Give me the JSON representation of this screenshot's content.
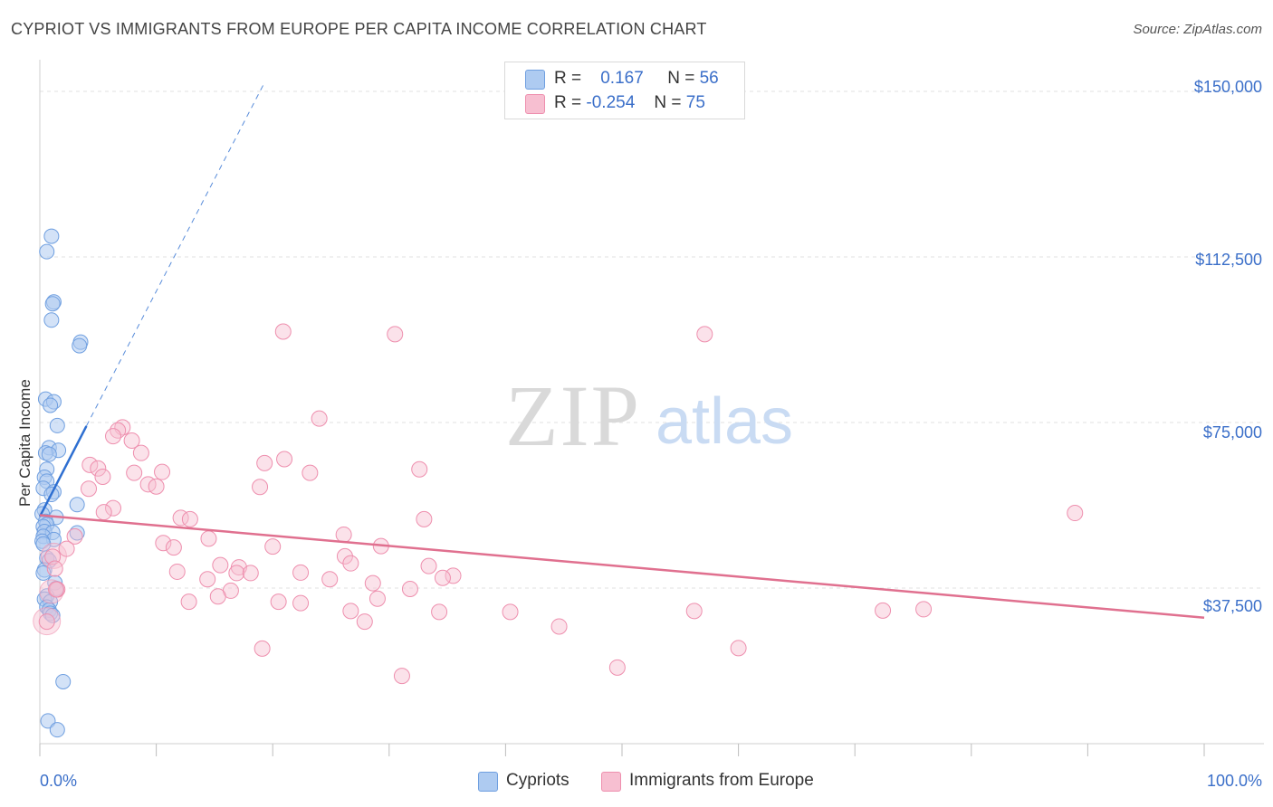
{
  "header": {
    "title": "CYPRIOT VS IMMIGRANTS FROM EUROPE PER CAPITA INCOME CORRELATION CHART",
    "source": "Source: ZipAtlas.com"
  },
  "legend": {
    "rows": [
      {
        "r_label": "R =",
        "r_value": "0.167",
        "n_label": "N =",
        "n_value": "56"
      },
      {
        "r_label": "R =",
        "r_value": "-0.254",
        "n_label": "N =",
        "n_value": "75"
      }
    ],
    "bottom": [
      "Cypriots",
      "Immigrants from Europe"
    ]
  },
  "watermark": {
    "zip": "ZIP",
    "atlas": "atlas"
  },
  "colors": {
    "blue_fill": "#aecbf1",
    "blue_stroke": "#6f9fe0",
    "blue_line": "#2e6fd1",
    "pink_fill": "#f7bfd1",
    "pink_stroke": "#ee8fae",
    "pink_line": "#e0708f",
    "tick_text": "#3b6fc9"
  },
  "chart_data": {
    "type": "scatter",
    "title": "CYPRIOT VS IMMIGRANTS FROM EUROPE PER CAPITA INCOME CORRELATION CHART",
    "xlabel": "",
    "ylabel": "Per Capita Income",
    "xlim": [
      0,
      100
    ],
    "ylim": [
      0,
      155000
    ],
    "x_tick_labels": [
      "0.0%",
      "100.0%"
    ],
    "y_ticks": [
      37500,
      75000,
      112500,
      150000
    ],
    "y_tick_labels": [
      "$37,500",
      "$75,000",
      "$112,500",
      "$150,000"
    ],
    "grid": true,
    "legend_position": "top-center",
    "series": [
      {
        "name": "Cypriots",
        "color": "#6f9fe0",
        "r": 0.167,
        "n": 56,
        "trend": {
          "x": [
            0,
            4
          ],
          "y": [
            53700,
            74200
          ]
        },
        "trend_extension": {
          "x": [
            4,
            19.2
          ],
          "y": [
            74200,
            151500
          ]
        },
        "points": [
          [
            1.0,
            117200
          ],
          [
            0.6,
            113700
          ],
          [
            1.2,
            102300
          ],
          [
            1.1,
            101900
          ],
          [
            1.0,
            98200
          ],
          [
            3.5,
            93200
          ],
          [
            3.4,
            92400
          ],
          [
            0.5,
            80300
          ],
          [
            1.2,
            79700
          ],
          [
            0.9,
            78900
          ],
          [
            1.5,
            74300
          ],
          [
            0.8,
            69300
          ],
          [
            1.6,
            68700
          ],
          [
            0.5,
            68100
          ],
          [
            0.8,
            67800
          ],
          [
            0.6,
            64400
          ],
          [
            0.4,
            62600
          ],
          [
            0.6,
            61700
          ],
          [
            0.3,
            60100
          ],
          [
            1.2,
            59300
          ],
          [
            1.0,
            58700
          ],
          [
            3.2,
            56400
          ],
          [
            0.4,
            55200
          ],
          [
            0.2,
            54300
          ],
          [
            1.4,
            53500
          ],
          [
            0.5,
            52600
          ],
          [
            0.6,
            51900
          ],
          [
            0.3,
            51400
          ],
          [
            0.4,
            50300
          ],
          [
            1.1,
            50100
          ],
          [
            3.2,
            50000
          ],
          [
            0.3,
            49200
          ],
          [
            1.2,
            48500
          ],
          [
            0.2,
            48100
          ],
          [
            0.3,
            47500
          ],
          [
            0.6,
            44300
          ],
          [
            0.8,
            43700
          ],
          [
            0.4,
            41600
          ],
          [
            0.3,
            40900
          ],
          [
            1.3,
            38700
          ],
          [
            1.4,
            37400
          ],
          [
            0.6,
            35700
          ],
          [
            0.4,
            35000
          ],
          [
            0.9,
            34400
          ],
          [
            0.6,
            33200
          ],
          [
            0.8,
            32500
          ],
          [
            0.9,
            31800
          ],
          [
            1.1,
            31300
          ],
          [
            2.0,
            16300
          ],
          [
            0.7,
            7400
          ],
          [
            1.5,
            5400
          ]
        ]
      },
      {
        "name": "Immigrants from Europe",
        "color": "#ee8fae",
        "r": -0.254,
        "n": 75,
        "trend": {
          "x": [
            0,
            100
          ],
          "y": [
            54000,
            30800
          ]
        },
        "points": [
          [
            20.9,
            95600
          ],
          [
            30.5,
            95000
          ],
          [
            57.1,
            95000
          ],
          [
            24.0,
            75900
          ],
          [
            7.1,
            73900
          ],
          [
            6.7,
            73200
          ],
          [
            6.3,
            71900
          ],
          [
            7.9,
            70900
          ],
          [
            8.7,
            68100
          ],
          [
            21.0,
            66700
          ],
          [
            19.3,
            65800
          ],
          [
            4.3,
            65400
          ],
          [
            5.0,
            64600
          ],
          [
            10.5,
            63800
          ],
          [
            23.2,
            63600
          ],
          [
            32.6,
            64400
          ],
          [
            8.1,
            63600
          ],
          [
            5.4,
            62700
          ],
          [
            9.3,
            61000
          ],
          [
            10.0,
            60500
          ],
          [
            18.9,
            60400
          ],
          [
            4.2,
            60000
          ],
          [
            6.3,
            55600
          ],
          [
            5.5,
            54700
          ],
          [
            88.9,
            54500
          ],
          [
            33.0,
            53100
          ],
          [
            12.1,
            53400
          ],
          [
            12.9,
            53100
          ],
          [
            26.1,
            49600
          ],
          [
            3.0,
            49200
          ],
          [
            14.5,
            48700
          ],
          [
            10.6,
            47700
          ],
          [
            11.5,
            46700
          ],
          [
            20.0,
            46900
          ],
          [
            29.3,
            47000
          ],
          [
            2.3,
            46400
          ],
          [
            26.2,
            44700
          ],
          [
            1.1,
            44600
          ],
          [
            26.7,
            43100
          ],
          [
            15.5,
            42700
          ],
          [
            33.4,
            42500
          ],
          [
            17.1,
            42200
          ],
          [
            1.3,
            41900
          ],
          [
            11.8,
            41200
          ],
          [
            16.9,
            40900
          ],
          [
            18.1,
            40900
          ],
          [
            22.4,
            41000
          ],
          [
            35.5,
            40300
          ],
          [
            34.6,
            39800
          ],
          [
            14.4,
            39500
          ],
          [
            24.9,
            39500
          ],
          [
            28.6,
            38600
          ],
          [
            1.5,
            37200
          ],
          [
            1.4,
            37200
          ],
          [
            31.8,
            37300
          ],
          [
            16.4,
            36900
          ],
          [
            15.3,
            35600
          ],
          [
            29.0,
            35100
          ],
          [
            12.8,
            34400
          ],
          [
            22.4,
            34100
          ],
          [
            20.5,
            34400
          ],
          [
            26.7,
            32300
          ],
          [
            34.3,
            32100
          ],
          [
            40.4,
            32100
          ],
          [
            56.2,
            32300
          ],
          [
            72.4,
            32400
          ],
          [
            75.9,
            32700
          ],
          [
            27.9,
            29900
          ],
          [
            0.6,
            29900
          ],
          [
            44.6,
            28800
          ],
          [
            19.1,
            23800
          ],
          [
            60.0,
            23900
          ],
          [
            31.1,
            17600
          ],
          [
            49.6,
            19500
          ]
        ]
      }
    ]
  }
}
